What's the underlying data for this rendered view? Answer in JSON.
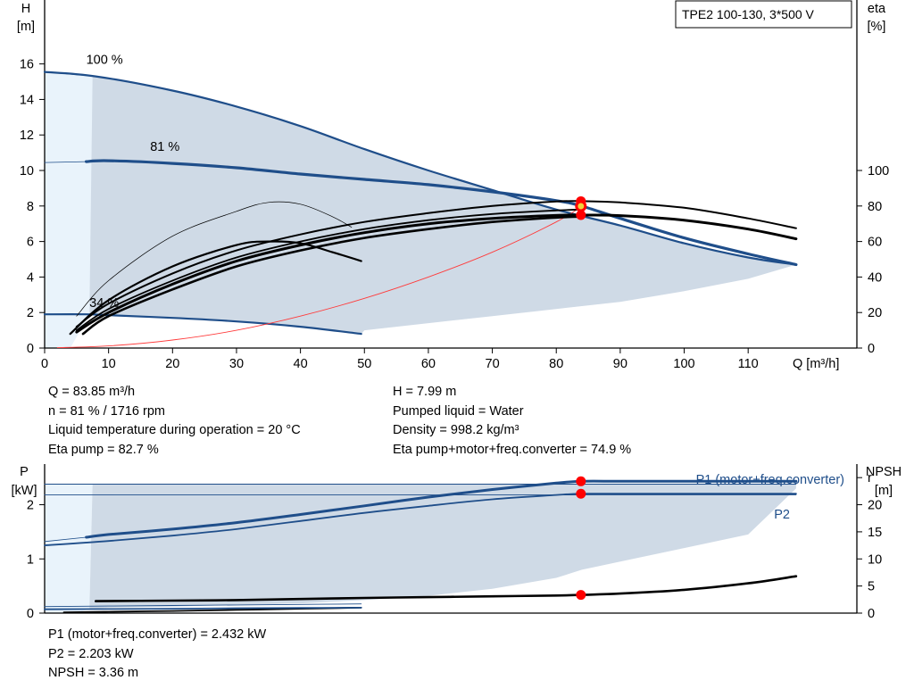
{
  "title": "TPE2 100-130, 3*500 V",
  "colors": {
    "blue_curve": "#1f4e8a",
    "area_fill": "#cfdae6",
    "light_fill": "#e9f3fb",
    "operating_point": "#ff0000",
    "system_curve": "#ff3b3b",
    "marker_inner": "#f2d23c"
  },
  "chart_data": [
    {
      "type": "line",
      "name": "head_and_efficiency",
      "xlabel": "Q [m³/h]",
      "ylabel": "H\n[m]",
      "ylabel_right": "eta\n[%]",
      "xlim": [
        0,
        127
      ],
      "ylim": [
        0,
        19.6
      ],
      "ylim_right": [
        0,
        196
      ],
      "x_ticks": [
        0,
        10,
        20,
        30,
        40,
        50,
        60,
        70,
        80,
        90,
        100,
        110
      ],
      "y_ticks": [
        0,
        2,
        4,
        6,
        8,
        10,
        12,
        14,
        16
      ],
      "y_right_ticks": [
        0,
        20,
        40,
        60,
        80,
        100
      ],
      "curve_labels": [
        {
          "text": "100 %",
          "x": 6.5,
          "y": 16.0
        },
        {
          "text": "81 %",
          "x": 16.5,
          "y": 11.1
        },
        {
          "text": "34 %",
          "x": 7.0,
          "y": 2.3
        }
      ],
      "series": [
        {
          "name": "H 100 %",
          "x": [
            0,
            8,
            20,
            30,
            40,
            50,
            60,
            70,
            80,
            90,
            100,
            110,
            117.5
          ],
          "y": [
            15.55,
            15.3,
            14.5,
            13.6,
            12.5,
            11.2,
            10.0,
            8.9,
            7.8,
            6.9,
            5.9,
            5.1,
            4.7
          ]
        },
        {
          "name": "H 81 %",
          "x": [
            6.5,
            10,
            20,
            30,
            40,
            50,
            60,
            70,
            80,
            84,
            90,
            100,
            110,
            117.5
          ],
          "y": [
            10.5,
            10.55,
            10.4,
            10.15,
            9.8,
            9.5,
            9.2,
            8.8,
            8.3,
            7.99,
            7.3,
            6.2,
            5.3,
            4.7
          ]
        },
        {
          "name": "H 34 %",
          "x": [
            0,
            6.5,
            10,
            20,
            30,
            40,
            49.5
          ],
          "y": [
            1.9,
            1.9,
            1.85,
            1.7,
            1.5,
            1.2,
            0.8
          ]
        },
        {
          "name": "H min (thin)",
          "x": [
            0,
            6.5
          ],
          "y": [
            10.45,
            10.5
          ]
        },
        {
          "name": "system curve",
          "x": [
            2,
            10,
            20,
            30,
            40,
            50,
            60,
            70,
            80,
            84
          ],
          "y": [
            0.02,
            0.12,
            0.45,
            1.0,
            1.8,
            2.8,
            4.0,
            5.4,
            7.1,
            7.99
          ]
        },
        {
          "name": "eta 100 % (thin)",
          "x": [
            5,
            10,
            20,
            30,
            35,
            40,
            45,
            48
          ],
          "y_right": [
            18,
            38,
            63,
            77,
            82,
            81,
            74,
            68
          ]
        },
        {
          "name": "eta 34 %",
          "x": [
            4,
            10,
            20,
            30,
            35,
            40,
            45,
            49.5
          ],
          "y_right": [
            8,
            27,
            46,
            58,
            60,
            59,
            54,
            49
          ]
        },
        {
          "name": "eta pump",
          "x": [
            5,
            10,
            20,
            30,
            40,
            50,
            60,
            70,
            80,
            84,
            90,
            100,
            110,
            117.5
          ],
          "y_right": [
            12,
            25,
            42,
            55,
            64,
            71,
            76,
            80,
            82.5,
            82.7,
            82,
            79,
            73,
            67.5
          ]
        },
        {
          "name": "eta pump+motor+freq.converter",
          "x": [
            5,
            10,
            20,
            30,
            40,
            50,
            60,
            70,
            80,
            84,
            90,
            100,
            110,
            117.5
          ],
          "y_right": [
            9,
            20,
            36,
            49,
            58,
            65,
            70,
            73,
            74.7,
            74.9,
            74.6,
            72,
            67,
            61.5
          ]
        },
        {
          "name": "eta 81 % pump",
          "x": [
            5,
            10,
            20,
            30,
            40,
            50,
            60,
            70,
            80,
            84
          ],
          "y_right": [
            10,
            22,
            38,
            51,
            60,
            67,
            72,
            75.5,
            77.5,
            78
          ]
        },
        {
          "name": "eta 81 % total",
          "x": [
            6,
            10,
            20,
            30,
            40,
            50,
            60,
            70,
            80,
            84
          ],
          "y_right": [
            8,
            18,
            33,
            46,
            55,
            62,
            67,
            71,
            73.5,
            74
          ]
        }
      ],
      "shaded_region": {
        "upper_x": [
          7.5,
          20,
          30,
          40,
          50,
          60,
          70,
          80,
          90,
          100,
          110,
          117.5
        ],
        "upper_y": [
          15.3,
          14.5,
          13.6,
          12.5,
          11.2,
          10.0,
          8.9,
          7.8,
          6.9,
          5.9,
          5.1,
          4.7
        ],
        "lower_x": [
          117.5,
          110,
          100,
          90,
          80,
          70,
          60,
          50,
          49.5,
          40,
          30,
          20,
          10,
          7
        ],
        "lower_y": [
          4.7,
          3.9,
          3.2,
          2.6,
          2.2,
          1.8,
          1.4,
          1.0,
          0.8,
          1.2,
          1.5,
          1.7,
          1.85,
          1.9
        ]
      },
      "operating_point": {
        "x": 83.85,
        "H": 7.99,
        "eta_pump": 82.7,
        "eta_total": 74.9
      }
    },
    {
      "type": "line",
      "name": "power_and_npsh",
      "ylabel": "P\n[kW]",
      "ylabel_right": "NPSH\n[m]",
      "xlim": [
        0,
        127
      ],
      "ylim": [
        0,
        2.75
      ],
      "ylim_right": [
        0,
        27.5
      ],
      "y_ticks": [
        0,
        1,
        2
      ],
      "y_right_ticks": [
        0,
        5,
        10,
        15,
        20
      ],
      "y_right_extra_tick": "r",
      "series_labels": [
        {
          "text": "P1 (motor+freq.converter)",
          "series": "P1"
        },
        {
          "text": "P2",
          "series": "P2"
        }
      ],
      "series": [
        {
          "name": "P1",
          "x": [
            6.5,
            10,
            20,
            30,
            40,
            50,
            60,
            70,
            80,
            84,
            90,
            100,
            110,
            117.5
          ],
          "y": [
            1.4,
            1.45,
            1.55,
            1.67,
            1.82,
            1.98,
            2.14,
            2.28,
            2.4,
            2.432,
            2.432,
            2.432,
            2.432,
            2.432
          ]
        },
        {
          "name": "P2",
          "x": [
            0,
            10,
            20,
            30,
            40,
            50,
            60,
            70,
            80,
            84,
            90,
            100,
            110,
            117.5
          ],
          "y": [
            1.25,
            1.33,
            1.43,
            1.55,
            1.7,
            1.85,
            1.98,
            2.1,
            2.18,
            2.203,
            2.203,
            2.203,
            2.203,
            2.203
          ]
        },
        {
          "name": "P1 max (thin)",
          "x": [
            0,
            117.5
          ],
          "y": [
            2.38,
            2.38
          ]
        },
        {
          "name": "P2 max (thin)",
          "x": [
            0,
            117.5
          ],
          "y": [
            2.18,
            2.18
          ]
        },
        {
          "name": "P1 start (thin)",
          "x": [
            0,
            6.5
          ],
          "y": [
            1.32,
            1.4
          ]
        },
        {
          "name": "NPSH",
          "x": [
            8,
            20,
            30,
            40,
            50,
            60,
            70,
            80,
            84,
            90,
            100,
            110,
            117.5
          ],
          "y_right": [
            2.2,
            2.3,
            2.4,
            2.6,
            2.8,
            2.95,
            3.1,
            3.25,
            3.36,
            3.6,
            4.3,
            5.5,
            6.8
          ]
        },
        {
          "name": "NPSH 34 %",
          "x": [
            3,
            10,
            20,
            30,
            40,
            49.5
          ],
          "y_right": [
            0.15,
            0.25,
            0.4,
            0.6,
            0.8,
            1.0
          ]
        },
        {
          "name": "P low 1",
          "x": [
            0,
            10,
            20,
            30,
            40,
            49.5
          ],
          "y": [
            0.07,
            0.075,
            0.08,
            0.09,
            0.095,
            0.1
          ]
        },
        {
          "name": "P low 2",
          "x": [
            0,
            10,
            20,
            30,
            40,
            49.5
          ],
          "y": [
            0.12,
            0.13,
            0.14,
            0.15,
            0.16,
            0.17
          ]
        }
      ],
      "shaded_region": {
        "upper_x": [
          7.5,
          117.5
        ],
        "upper_y": [
          2.38,
          2.38
        ],
        "lower_x": [
          117.5,
          110,
          100,
          90,
          84,
          80,
          70,
          60,
          50,
          40,
          30,
          20,
          10,
          7
        ],
        "lower_y": [
          2.3,
          1.45,
          1.2,
          0.95,
          0.8,
          0.65,
          0.45,
          0.32,
          0.24,
          0.18,
          0.15,
          0.12,
          0.1,
          0.08
        ]
      },
      "operating_point": {
        "x": 83.85,
        "P1": 2.432,
        "P2": 2.203,
        "NPSH": 3.36
      }
    }
  ],
  "info_left": [
    "Q = 83.85 m³/h",
    "n = 81 % / 1716 rpm",
    "Liquid temperature during operation = 20 °C",
    "Eta pump = 82.7 %"
  ],
  "info_right": [
    "H = 7.99 m",
    "Pumped liquid = Water",
    "Density = 998.2 kg/m³",
    "Eta pump+motor+freq.converter = 74.9 %"
  ],
  "info_bottom": [
    "P1 (motor+freq.converter) = 2.432 kW",
    "P2 = 2.203 kW",
    "NPSH = 3.36 m"
  ]
}
